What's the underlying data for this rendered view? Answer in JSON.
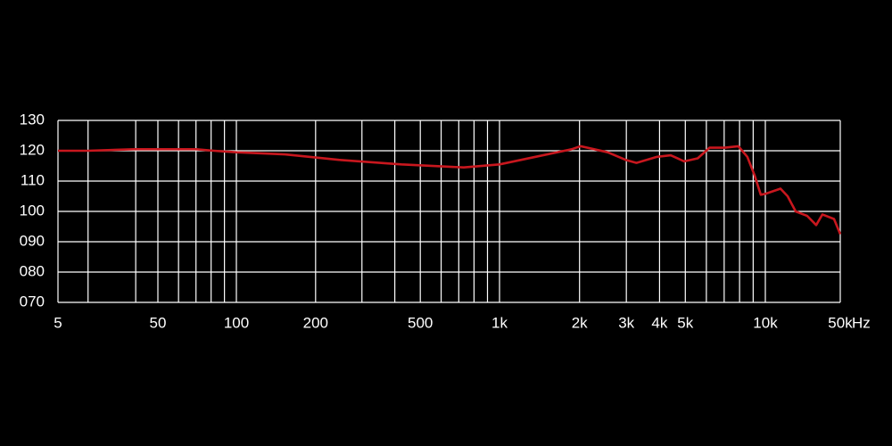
{
  "chart_data": {
    "type": "line",
    "x_label": "Hz",
    "log_x": true,
    "grid": true,
    "xlim": [
      5,
      50000
    ],
    "ylim": [
      70,
      130
    ],
    "xticks": [
      5,
      50,
      100,
      200,
      500,
      {
        "value": 1000,
        "label": "1k"
      },
      {
        "value": 2000,
        "label": "2k"
      },
      {
        "value": 3000,
        "label": "3k"
      },
      {
        "value": 4000,
        "label": "4k"
      },
      {
        "value": 5000,
        "label": "5k"
      },
      {
        "value": 10000,
        "label": "10k"
      },
      {
        "value": 50000,
        "label": "50k"
      }
    ],
    "x_minor_grid": [
      10,
      30,
      60,
      70,
      80,
      90,
      300,
      400,
      600,
      700,
      800,
      900,
      6000,
      7000,
      8000,
      9000
    ],
    "yticks": [
      {
        "value": 70,
        "label": "070"
      },
      {
        "value": 80,
        "label": "080"
      },
      {
        "value": 90,
        "label": "090"
      },
      100,
      110,
      120,
      130
    ],
    "x": [
      5,
      10,
      29,
      70,
      82,
      100,
      153,
      245,
      424,
      731,
      1000,
      1366,
      1868,
      2019,
      2551,
      2983,
      3275,
      3918,
      4405,
      4953,
      5568,
      6166,
      7036,
      7912,
      8554,
      9103,
      9610,
      10000,
      10390,
      13850,
      16150,
      19190,
      24620,
      29810,
      34080,
      43740,
      50000
    ],
    "series": [
      {
        "color": "#c8171e",
        "values": [
          120,
          120,
          120.5,
          120.5,
          120,
          119.5,
          118.8,
          117,
          115.5,
          114.5,
          115.5,
          118,
          120.5,
          121.5,
          119.5,
          117,
          116,
          118,
          118.5,
          116.5,
          117.5,
          121,
          121,
          121.5,
          118,
          112,
          105.5,
          105.8,
          106,
          107.5,
          105,
          100,
          98.5,
          95.5,
          99,
          97.5,
          92.5
        ]
      }
    ]
  }
}
